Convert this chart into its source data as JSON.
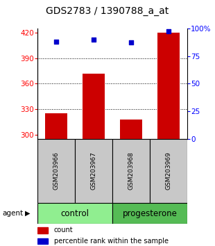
{
  "title": "GDS2783 / 1390788_a_at",
  "samples": [
    "GSM203966",
    "GSM203967",
    "GSM203968",
    "GSM203969"
  ],
  "bar_values": [
    325,
    372,
    318,
    420
  ],
  "percentile_values": [
    88,
    90,
    87,
    97
  ],
  "ylim_left": [
    295,
    425
  ],
  "ylim_right": [
    0,
    100
  ],
  "yticks_left": [
    300,
    330,
    360,
    390,
    420
  ],
  "yticks_right": [
    0,
    25,
    50,
    75,
    100
  ],
  "bar_color": "#cc0000",
  "dot_color": "#0000cc",
  "bar_width": 0.6,
  "groups": [
    {
      "label": "control",
      "indices": [
        0,
        1
      ],
      "color": "#90ee90"
    },
    {
      "label": "progesterone",
      "indices": [
        2,
        3
      ],
      "color": "#55bb55"
    }
  ],
  "sample_box_color": "#c8c8c8",
  "legend_count_color": "#cc0000",
  "legend_pct_color": "#0000cc",
  "agent_label": "agent",
  "title_fontsize": 10,
  "tick_fontsize": 7.5,
  "sample_fontsize": 6.5,
  "group_fontsize": 8.5,
  "legend_fontsize": 7
}
